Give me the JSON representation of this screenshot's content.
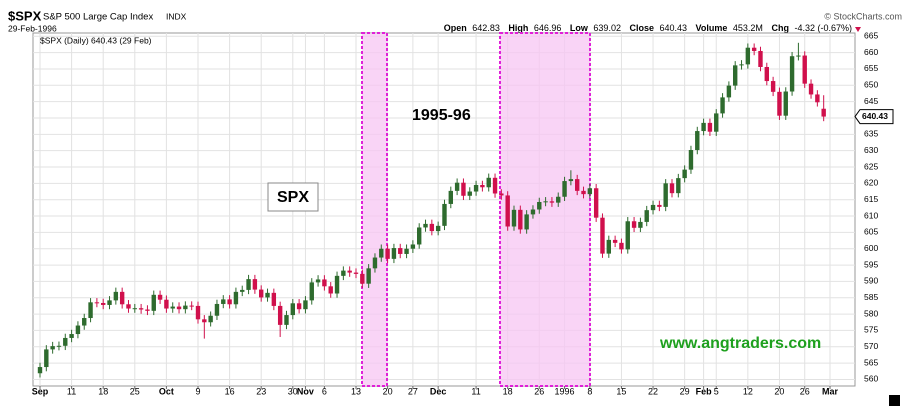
{
  "header": {
    "symbol": "$SPX",
    "name": "S&P 500 Large Cap Index",
    "exchange": "INDX",
    "date": "29-Feb-1996",
    "source": "© StockCharts.com",
    "quote": {
      "open_label": "Open",
      "open": 642.83,
      "high_label": "High",
      "high": 646.96,
      "low_label": "Low",
      "low": 639.02,
      "close_label": "Close",
      "close": 640.43,
      "volume_label": "Volume",
      "volume": "453.2M",
      "chg_label": "Chg",
      "chg": "-4.32 (-0.67%)"
    },
    "legend": "$SPX (Daily) 640.43 (29 Feb)"
  },
  "chart_data": {
    "type": "candlestick",
    "annotations": [
      "SPX",
      "1995-96",
      "www.angtraders.com"
    ],
    "last_price": 640.43,
    "up_color": "#2e6b2e",
    "down_color": "#d0104c",
    "grid": true,
    "ylim": [
      558,
      666
    ],
    "yticks": [
      560,
      565,
      570,
      575,
      580,
      585,
      590,
      595,
      600,
      605,
      610,
      615,
      620,
      625,
      630,
      635,
      640,
      645,
      650,
      655,
      660,
      665
    ],
    "categories": [
      "Sep",
      null,
      null,
      null,
      null,
      "11",
      null,
      null,
      null,
      null,
      "18",
      null,
      null,
      null,
      null,
      "25",
      null,
      null,
      null,
      null,
      "Oct",
      null,
      null,
      null,
      null,
      "9",
      null,
      null,
      null,
      null,
      "16",
      null,
      null,
      null,
      null,
      "23",
      null,
      null,
      null,
      null,
      "30",
      null,
      "Nov",
      null,
      null,
      "6",
      null,
      null,
      null,
      null,
      "13",
      null,
      null,
      null,
      null,
      "20",
      null,
      null,
      null,
      "27",
      null,
      null,
      null,
      "Dec",
      null,
      null,
      null,
      null,
      null,
      "11",
      null,
      null,
      null,
      null,
      "18",
      null,
      null,
      null,
      null,
      "26",
      null,
      null,
      null,
      "1996",
      null,
      null,
      null,
      "8",
      null,
      null,
      null,
      null,
      "15",
      null,
      null,
      null,
      null,
      "22",
      null,
      null,
      null,
      null,
      "29",
      null,
      null,
      "Feb",
      null,
      "5",
      null,
      null,
      null,
      null,
      "12",
      null,
      null,
      null,
      null,
      "20",
      null,
      null,
      null,
      "26",
      null,
      null,
      null,
      "Mar"
    ],
    "open": [
      561.9,
      563.8,
      569.2,
      570.2,
      570.3,
      572.7,
      573.9,
      576.5,
      578.8,
      583.6,
      583.4,
      582.8,
      584.2,
      586.8,
      583.0,
      581.7,
      581.8,
      581.4,
      581.0,
      585.9,
      584.4,
      581.7,
      582.3,
      581.5,
      582.6,
      582.5,
      578.4,
      577.5,
      579.5,
      583.1,
      584.5,
      583.0,
      586.8,
      587.4,
      590.7,
      587.5,
      585.1,
      586.5,
      582.5,
      576.7,
      579.7,
      583.3,
      581.5,
      584.2,
      589.7,
      590.6,
      588.5,
      586.3,
      591.7,
      593.3,
      592.7,
      592.3,
      589.3,
      594.0,
      597.3,
      600.0,
      596.9,
      600.2,
      598.4,
      600.0,
      601.3,
      606.5,
      607.6,
      605.4,
      607.0,
      613.7,
      617.7,
      620.2,
      616.2,
      617.5,
      619.5,
      618.8,
      621.7,
      616.9,
      616.3,
      606.8,
      611.9,
      605.9,
      610.5,
      612.0,
      614.3,
      614.5,
      614.1,
      615.9,
      620.7,
      621.3,
      617.7,
      616.7,
      618.5,
      609.5,
      598.5,
      602.7,
      601.8,
      599.8,
      608.4,
      606.4,
      608.2,
      611.8,
      613.4,
      612.8,
      620.0,
      617.0,
      621.6,
      624.2,
      630.2,
      636.0,
      638.5,
      635.8,
      641.4,
      646.3,
      649.9,
      656.1,
      656.4,
      661.5,
      660.5,
      655.6,
      651.3,
      648.0,
      640.7,
      648.1,
      658.9,
      659.1,
      650.5,
      647.2,
      642.83,
      null
    ],
    "high": [
      565.1,
      570.5,
      571.5,
      571.6,
      574.0,
      575.2,
      577.8,
      580.1,
      584.9,
      584.9,
      584.7,
      585.5,
      588.1,
      588.1,
      584.3,
      583.1,
      583.1,
      582.7,
      587.2,
      587.2,
      585.7,
      583.6,
      583.6,
      583.9,
      583.9,
      583.8,
      579.7,
      580.8,
      584.4,
      585.8,
      585.8,
      588.1,
      588.7,
      592.0,
      592.0,
      588.8,
      587.8,
      587.8,
      583.8,
      581.0,
      584.6,
      584.6,
      585.5,
      591.0,
      591.9,
      591.9,
      589.8,
      593.0,
      594.6,
      594.6,
      594.0,
      593.6,
      595.3,
      598.6,
      601.3,
      601.3,
      601.5,
      601.5,
      601.3,
      602.6,
      607.8,
      608.9,
      608.9,
      608.3,
      615.0,
      619.0,
      621.5,
      621.5,
      618.8,
      620.8,
      620.8,
      623.0,
      623.0,
      618.2,
      617.6,
      613.2,
      613.2,
      611.8,
      613.3,
      615.6,
      615.8,
      615.8,
      617.2,
      622.0,
      624.0,
      622.6,
      619.0,
      619.8,
      619.8,
      610.8,
      604.0,
      604.0,
      603.1,
      609.7,
      609.7,
      609.5,
      613.1,
      614.7,
      614.7,
      621.3,
      621.3,
      622.9,
      625.5,
      631.5,
      637.3,
      639.8,
      639.8,
      642.7,
      647.6,
      651.2,
      657.4,
      657.7,
      662.8,
      662.8,
      661.8,
      656.9,
      652.6,
      649.3,
      649.4,
      660.2,
      663.0,
      660.4,
      651.8,
      648.5,
      646.96,
      null
    ],
    "low": [
      560.6,
      562.5,
      567.9,
      568.9,
      569.0,
      571.4,
      572.6,
      575.2,
      577.5,
      582.1,
      581.5,
      581.5,
      582.9,
      581.7,
      580.4,
      580.4,
      580.1,
      579.7,
      579.7,
      583.1,
      580.4,
      580.4,
      580.2,
      580.2,
      581.2,
      577.1,
      572.5,
      576.2,
      578.2,
      581.8,
      581.7,
      581.7,
      585.5,
      586.1,
      586.2,
      583.8,
      583.8,
      581.2,
      573.0,
      575.4,
      578.4,
      580.2,
      580.2,
      582.9,
      588.4,
      587.2,
      585.0,
      585.0,
      590.4,
      591.4,
      591.0,
      588.0,
      588.0,
      592.7,
      596.0,
      595.6,
      595.6,
      597.1,
      597.1,
      598.7,
      600.0,
      605.2,
      604.1,
      604.1,
      605.7,
      612.4,
      616.4,
      614.9,
      614.9,
      616.2,
      617.5,
      617.5,
      615.6,
      615.0,
      605.5,
      605.5,
      604.6,
      604.6,
      609.2,
      610.7,
      613.0,
      612.8,
      612.8,
      614.6,
      619.4,
      616.4,
      615.4,
      615.4,
      608.2,
      597.2,
      597.2,
      600.5,
      598.5,
      598.5,
      605.1,
      605.1,
      606.9,
      610.5,
      611.5,
      611.5,
      615.7,
      615.7,
      620.3,
      622.9,
      628.9,
      634.7,
      634.5,
      634.5,
      640.1,
      645.0,
      648.6,
      654.8,
      655.1,
      659.2,
      654.3,
      650.0,
      646.7,
      639.4,
      639.4,
      646.8,
      657.6,
      649.2,
      645.9,
      643.5,
      639.02,
      null
    ],
    "close": [
      563.8,
      569.2,
      570.2,
      570.3,
      572.7,
      573.9,
      576.5,
      578.8,
      583.6,
      583.4,
      582.8,
      584.2,
      586.8,
      583.0,
      581.7,
      581.8,
      581.4,
      581.0,
      585.9,
      584.4,
      581.7,
      582.3,
      581.5,
      582.6,
      582.5,
      578.4,
      577.5,
      579.5,
      583.1,
      584.5,
      583.0,
      586.8,
      587.4,
      590.7,
      587.5,
      585.1,
      586.5,
      582.5,
      576.7,
      579.7,
      583.3,
      581.5,
      584.2,
      589.7,
      590.6,
      588.5,
      586.3,
      591.7,
      593.3,
      592.7,
      592.3,
      589.3,
      594.0,
      597.3,
      600.0,
      596.9,
      600.2,
      598.4,
      600.0,
      601.3,
      606.5,
      607.6,
      605.4,
      607.0,
      613.7,
      617.7,
      620.2,
      616.2,
      617.5,
      619.5,
      618.8,
      621.7,
      616.9,
      616.3,
      606.8,
      611.9,
      605.9,
      610.5,
      612.0,
      614.3,
      614.5,
      614.1,
      615.9,
      620.7,
      621.3,
      617.7,
      616.7,
      618.5,
      609.5,
      598.5,
      602.7,
      601.8,
      599.8,
      608.4,
      606.4,
      608.2,
      611.8,
      613.4,
      612.8,
      620.0,
      617.0,
      621.6,
      624.2,
      630.2,
      636.0,
      638.5,
      635.8,
      641.4,
      646.3,
      649.9,
      656.1,
      656.4,
      661.5,
      660.5,
      655.6,
      651.3,
      648.0,
      640.7,
      648.1,
      658.9,
      659.1,
      650.5,
      647.2,
      644.8,
      640.43,
      null
    ]
  }
}
